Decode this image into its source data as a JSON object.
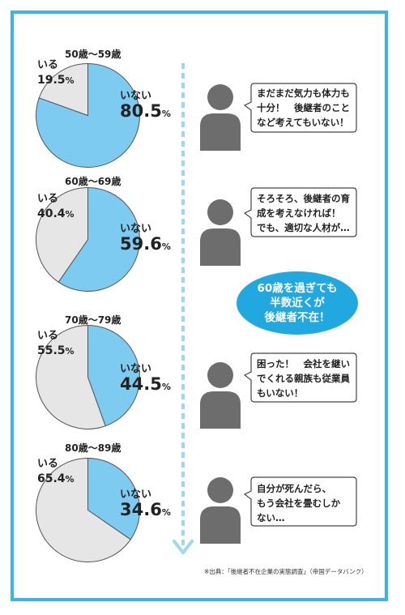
{
  "chart_data": [
    {
      "type": "pie",
      "title": "50歳〜59歳",
      "labels": [
        "いない",
        "いる"
      ],
      "values": [
        80.5,
        19.5
      ],
      "unit": "%",
      "colors": [
        "#7ecbf2",
        "#e6e6e6"
      ]
    },
    {
      "type": "pie",
      "title": "60歳〜69歳",
      "labels": [
        "いない",
        "いる"
      ],
      "values": [
        59.6,
        40.4
      ],
      "unit": "%",
      "colors": [
        "#7ecbf2",
        "#e6e6e6"
      ]
    },
    {
      "type": "pie",
      "title": "70歳〜79歳",
      "labels": [
        "いない",
        "いる"
      ],
      "values": [
        44.5,
        55.5
      ],
      "unit": "%",
      "colors": [
        "#7ecbf2",
        "#e6e6e6"
      ]
    },
    {
      "type": "pie",
      "title": "80歳〜89歳",
      "labels": [
        "いない",
        "いる"
      ],
      "values": [
        34.6,
        65.4
      ],
      "unit": "%",
      "colors": [
        "#7ecbf2",
        "#e6e6e6"
      ]
    }
  ],
  "pies": [
    {
      "age": "50歳〜59歳",
      "iru_label": "いる",
      "iru_value": "19.5",
      "inai_label": "いない",
      "inai_value": "80.5",
      "unit": "%"
    },
    {
      "age": "60歳〜69歳",
      "iru_label": "いる",
      "iru_value": "40.4",
      "inai_label": "いない",
      "inai_value": "59.6",
      "unit": "%"
    },
    {
      "age": "70歳〜79歳",
      "iru_label": "いる",
      "iru_value": "55.5",
      "inai_label": "いない",
      "inai_value": "44.5",
      "unit": "%"
    },
    {
      "age": "80歳〜89歳",
      "iru_label": "いる",
      "iru_value": "65.4",
      "inai_label": "いない",
      "inai_value": "34.6",
      "unit": "%"
    }
  ],
  "bubbles": [
    "まだまだ気力も体力も\n十分！　後継者のこと\nなど考えてもいない！",
    "そろそろ、後継者の育\n成を考えなければ！\nでも、適切な人材が…",
    "困った！　会社を継い\nでくれる親族も従業員\nもいない！",
    "自分が死んだら、\nもう会社を畳むしか\nない…"
  ],
  "callout": "60歳を過ぎても\n半数近くが\n後継者不在！",
  "source": "※出典：「後継者不在企業の実態調査」（帝国データバンク）",
  "colors": {
    "frame": "#3db4e8",
    "inai": "#7ecbf2",
    "iru": "#e6e6e6",
    "callout": "#21a8e0",
    "person": "#6d6d6d"
  }
}
